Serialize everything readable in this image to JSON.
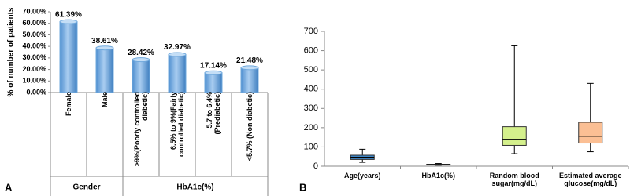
{
  "chart_data": [
    {
      "type": "bar",
      "panel": "A",
      "y_label": "% of number of patients",
      "categories": [
        "Female",
        "Male",
        ">9%(Poorly controlled diabetic)",
        "6.5% to 9%(Fairly controlled diabetic)",
        "5.7 to 6.4% (Prediabetic)",
        "<5.7% (Non diabetic)"
      ],
      "values": [
        61.39,
        38.61,
        28.42,
        32.97,
        17.14,
        21.48
      ],
      "value_labels": [
        "61.39%",
        "38.61%",
        "28.42%",
        "32.97%",
        "17.14%",
        "21.48%"
      ],
      "groups": [
        {
          "label": "Gender",
          "size": 2
        },
        {
          "label": "HbA1c(%)",
          "size": 4
        }
      ],
      "color": "#6fa8dc",
      "ylim": [
        0,
        70
      ],
      "yticks": [
        {
          "value": 0,
          "label": "0.00%"
        },
        {
          "value": 10,
          "label": "10.00%"
        },
        {
          "value": 20,
          "label": "20.00%"
        },
        {
          "value": 30,
          "label": "30.00%"
        },
        {
          "value": 40,
          "label": "40.00%"
        },
        {
          "value": 50,
          "label": "50.00%"
        },
        {
          "value": 60,
          "label": "60.00%"
        },
        {
          "value": 70,
          "label": "70.00%"
        }
      ]
    },
    {
      "type": "box",
      "panel": "B",
      "categories": [
        "Age(years)",
        "HbA1c(%)",
        "Random blood sugar(mg/dL)",
        "Estimated average glucose(mg/dL)"
      ],
      "boxes": [
        {
          "min": 20,
          "q1": 35,
          "median": 47,
          "q3": 57,
          "max": 88
        },
        {
          "min": 5,
          "q1": 6,
          "median": 8,
          "q3": 10,
          "max": 14
        },
        {
          "min": 65,
          "q1": 108,
          "median": 140,
          "q3": 205,
          "max": 625
        },
        {
          "min": 75,
          "q1": 120,
          "median": 155,
          "q3": 228,
          "max": 430
        }
      ],
      "colors": [
        "#3d85c6",
        "#3d85c6",
        "#d4f08c",
        "#fbbf94"
      ],
      "ylim": [
        0,
        700
      ],
      "yticks": [
        0,
        100,
        200,
        300,
        400,
        500,
        600,
        700
      ]
    }
  ]
}
